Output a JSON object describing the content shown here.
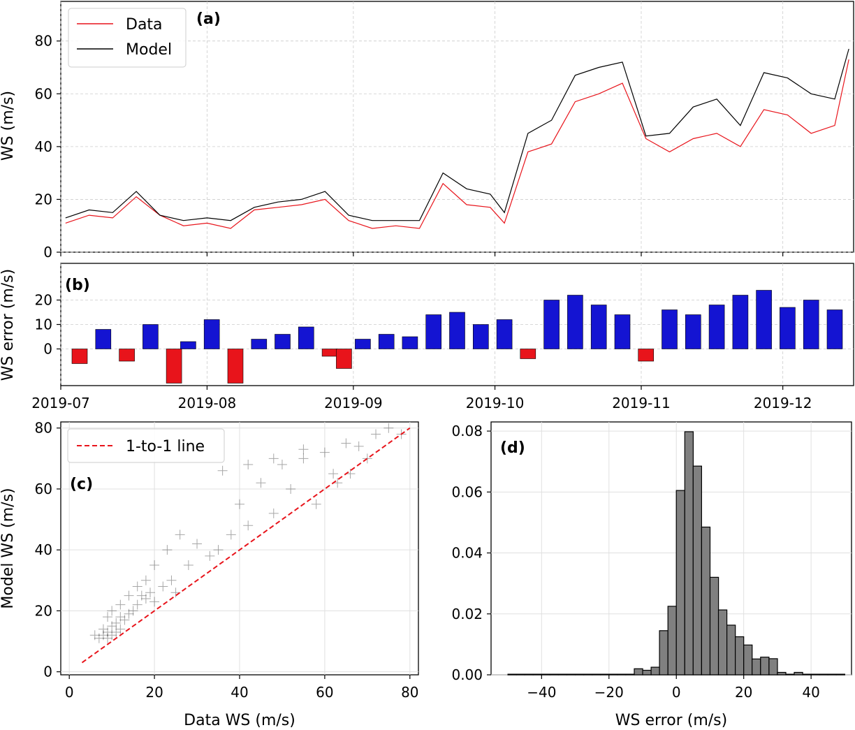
{
  "figure": {
    "panels": [
      "(a)",
      "(b)",
      "(c)",
      "(d)"
    ]
  },
  "chart_data": [
    {
      "id": "a",
      "type": "line",
      "panel_label": "(a)",
      "title": "",
      "xlabel": "",
      "ylabel": "WS (m/s)",
      "x_axis": "date",
      "xlim": [
        "2019-07-01",
        "2019-12-16"
      ],
      "ylim": [
        0,
        95
      ],
      "y_ticks": [
        0,
        20,
        40,
        60,
        80
      ],
      "grid": true,
      "legend": {
        "position": "top-left",
        "entries": [
          "Data",
          "Model"
        ]
      },
      "series": [
        {
          "name": "Data",
          "color": "#e8141b",
          "values_note": "approx. every ~5 days",
          "x": [
            "2019-07-02",
            "2019-07-07",
            "2019-07-12",
            "2019-07-17",
            "2019-07-22",
            "2019-07-27",
            "2019-08-01",
            "2019-08-06",
            "2019-08-11",
            "2019-08-16",
            "2019-08-21",
            "2019-08-26",
            "2019-08-31",
            "2019-09-05",
            "2019-09-10",
            "2019-09-15",
            "2019-09-20",
            "2019-09-25",
            "2019-09-30",
            "2019-10-03",
            "2019-10-08",
            "2019-10-13",
            "2019-10-18",
            "2019-10-23",
            "2019-10-28",
            "2019-11-02",
            "2019-11-07",
            "2019-11-12",
            "2019-11-17",
            "2019-11-22",
            "2019-11-27",
            "2019-12-02",
            "2019-12-07",
            "2019-12-12",
            "2019-12-15"
          ],
          "y": [
            11,
            14,
            13,
            21,
            14,
            10,
            11,
            9,
            16,
            17,
            18,
            20,
            12,
            9,
            10,
            9,
            26,
            18,
            17,
            11,
            38,
            41,
            57,
            60,
            64,
            43,
            38,
            43,
            45,
            40,
            54,
            52,
            45,
            48,
            73
          ]
        },
        {
          "name": "Model",
          "color": "#000000",
          "x": [
            "2019-07-02",
            "2019-07-07",
            "2019-07-12",
            "2019-07-17",
            "2019-07-22",
            "2019-07-27",
            "2019-08-01",
            "2019-08-06",
            "2019-08-11",
            "2019-08-16",
            "2019-08-21",
            "2019-08-26",
            "2019-08-31",
            "2019-09-05",
            "2019-09-10",
            "2019-09-15",
            "2019-09-20",
            "2019-09-25",
            "2019-09-30",
            "2019-10-03",
            "2019-10-08",
            "2019-10-13",
            "2019-10-18",
            "2019-10-23",
            "2019-10-28",
            "2019-11-02",
            "2019-11-07",
            "2019-11-12",
            "2019-11-17",
            "2019-11-22",
            "2019-11-27",
            "2019-12-02",
            "2019-12-07",
            "2019-12-12",
            "2019-12-15"
          ],
          "y": [
            13,
            16,
            15,
            23,
            14,
            12,
            13,
            12,
            17,
            19,
            20,
            23,
            14,
            12,
            12,
            12,
            30,
            24,
            22,
            15,
            45,
            50,
            67,
            70,
            72,
            44,
            45,
            55,
            58,
            48,
            68,
            66,
            60,
            58,
            77
          ]
        }
      ]
    },
    {
      "id": "b",
      "type": "bar",
      "panel_label": "(b)",
      "title": "",
      "xlabel": "",
      "ylabel": "WS error (m/s)",
      "x_axis": "date",
      "xlim": [
        "2019-07-01",
        "2019-12-16"
      ],
      "ylim": [
        -15,
        35
      ],
      "y_ticks": [
        0,
        10,
        20
      ],
      "x_ticks": [
        "2019-07",
        "2019-08",
        "2019-09",
        "2019-10",
        "2019-11",
        "2019-12"
      ],
      "grid": true,
      "colors": {
        "positive": "#1414d2",
        "negative": "#e8141b"
      },
      "x": [
        "2019-07-05",
        "2019-07-10",
        "2019-07-15",
        "2019-07-20",
        "2019-07-25",
        "2019-07-28",
        "2019-08-02",
        "2019-08-07",
        "2019-08-12",
        "2019-08-17",
        "2019-08-22",
        "2019-08-27",
        "2019-08-30",
        "2019-09-03",
        "2019-09-08",
        "2019-09-13",
        "2019-09-18",
        "2019-09-23",
        "2019-09-28",
        "2019-10-03",
        "2019-10-08",
        "2019-10-13",
        "2019-10-18",
        "2019-10-23",
        "2019-10-28",
        "2019-11-02",
        "2019-11-07",
        "2019-11-12",
        "2019-11-17",
        "2019-11-22",
        "2019-11-27",
        "2019-12-02",
        "2019-12-07",
        "2019-12-12"
      ],
      "values": [
        -6,
        8,
        -5,
        10,
        -14,
        3,
        12,
        -14,
        4,
        6,
        9,
        -3,
        -8,
        4,
        6,
        5,
        14,
        15,
        10,
        12,
        -4,
        20,
        22,
        18,
        14,
        -5,
        16,
        14,
        18,
        22,
        24,
        17,
        20,
        16
      ]
    },
    {
      "id": "c",
      "type": "scatter",
      "panel_label": "(c)",
      "title": "",
      "xlabel": "Data WS (m/s)",
      "ylabel": "Model WS (m/s)",
      "xlim": [
        -2,
        82
      ],
      "ylim": [
        -1,
        82
      ],
      "x_ticks": [
        0,
        20,
        40,
        60,
        80
      ],
      "y_ticks": [
        0,
        20,
        40,
        60,
        80
      ],
      "grid": true,
      "legend": {
        "position": "top-left",
        "entries": [
          "1-to-1 line"
        ]
      },
      "reference_line": {
        "name": "1-to-1 line",
        "x": [
          3,
          80
        ],
        "y": [
          3,
          80
        ],
        "color": "#e8141b",
        "style": "dashed"
      },
      "marker_color": "#000000",
      "points_note": "approx. representative sample of the ~600 points",
      "x": [
        6,
        7,
        8,
        8,
        9,
        9,
        10,
        10,
        11,
        11,
        12,
        12,
        13,
        14,
        15,
        16,
        17,
        18,
        19,
        20,
        22,
        24,
        25,
        28,
        30,
        33,
        35,
        38,
        40,
        42,
        45,
        48,
        50,
        52,
        55,
        58,
        60,
        62,
        65,
        68,
        70,
        72,
        75,
        78,
        9,
        10,
        12,
        14,
        16,
        18,
        20,
        23,
        26,
        36,
        42,
        48,
        55,
        63,
        66
      ],
      "y": [
        12,
        11,
        12,
        14,
        11,
        13,
        12,
        15,
        13,
        16,
        14,
        18,
        17,
        19,
        20,
        22,
        25,
        24,
        26,
        23,
        28,
        30,
        26,
        35,
        42,
        38,
        40,
        45,
        55,
        48,
        62,
        52,
        68,
        60,
        70,
        55,
        72,
        65,
        75,
        74,
        70,
        78,
        80,
        78,
        18,
        20,
        22,
        25,
        28,
        30,
        35,
        40,
        45,
        66,
        68,
        70,
        73,
        62,
        65
      ]
    },
    {
      "id": "d",
      "type": "bar",
      "panel_label": "(d)",
      "title": "",
      "xlabel": "WS error (m/s)",
      "ylabel": "",
      "xlim": [
        -55,
        52
      ],
      "ylim": [
        0,
        0.083
      ],
      "x_ticks": [
        -40,
        -20,
        0,
        20,
        40
      ],
      "y_ticks": [
        0.0,
        0.02,
        0.04,
        0.06,
        0.08
      ],
      "grid": true,
      "bar_color": "#808080",
      "bin_edges": [
        -50,
        -47.5,
        -45,
        -42.5,
        -40,
        -37.5,
        -35,
        -32.5,
        -30,
        -27.5,
        -25,
        -22.5,
        -20,
        -17.5,
        -15,
        -12.5,
        -10,
        -7.5,
        -5,
        -2.5,
        0,
        2.5,
        5,
        7.5,
        10,
        12.5,
        15,
        17.5,
        20,
        22.5,
        25,
        27.5,
        30,
        32.5,
        35,
        37.5,
        40,
        42.5,
        45,
        47.5,
        50
      ],
      "values": [
        0.0002,
        0.0002,
        0.0002,
        0.0002,
        0.0002,
        0.0002,
        0.0002,
        0.0002,
        0.0002,
        0.0002,
        0.0002,
        0.0002,
        0.0002,
        0.0002,
        0.0002,
        0.002,
        0.0015,
        0.0025,
        0.0145,
        0.0225,
        0.0605,
        0.0798,
        0.0685,
        0.0485,
        0.032,
        0.0213,
        0.0163,
        0.0125,
        0.0098,
        0.0052,
        0.0058,
        0.0053,
        0.0008,
        0.0002,
        0.0008,
        0.0002,
        0.0002,
        0.0002,
        0.0002,
        0.0002
      ]
    }
  ]
}
